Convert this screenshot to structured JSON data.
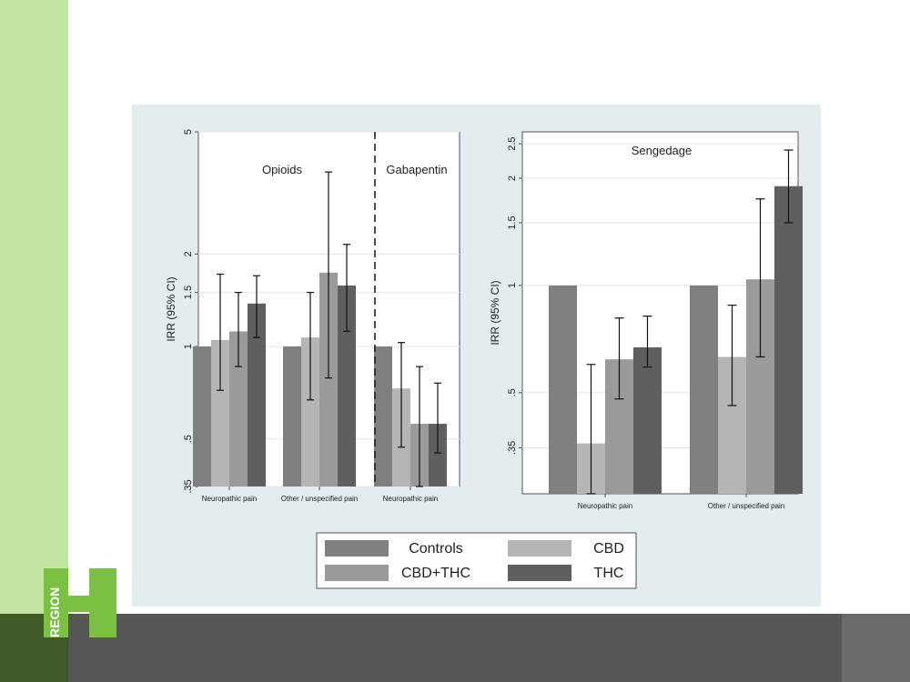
{
  "logo": {
    "text": "REGION",
    "accent": "#7ac143"
  },
  "colors": {
    "sidebar": "#c3e3a4",
    "footer": "#565656",
    "panel": "#e3ecee"
  },
  "legend": {
    "items": [
      {
        "label": "Controls",
        "color": "#7f7f7f"
      },
      {
        "label": "CBD",
        "color": "#b5b5b5"
      },
      {
        "label": "CBD+THC",
        "color": "#9a9a9a"
      },
      {
        "label": "THC",
        "color": "#5f5f5f"
      }
    ]
  },
  "chart_data": [
    {
      "type": "bar",
      "scale": "log",
      "ylabel": "IRR (95% CI)",
      "yticks": [
        ".35",
        ".5",
        "1",
        "1.5",
        "2",
        "5"
      ],
      "ylim": [
        0.35,
        5
      ],
      "panels": [
        {
          "label": "Opioids",
          "categories": [
            "Neuropathic pain",
            "Other / unspecified pain"
          ]
        },
        {
          "label": "Gabapentin",
          "categories": [
            "Neuropathic pain"
          ]
        }
      ],
      "categories": [
        "Neuropathic pain",
        "Other / unspecified pain",
        "Neuropathic pain"
      ],
      "series": [
        {
          "name": "Controls",
          "color": "#7f7f7f",
          "values": [
            1.0,
            1.0,
            1.0
          ],
          "ci_low": [
            null,
            null,
            null
          ],
          "ci_high": [
            null,
            null,
            null
          ]
        },
        {
          "name": "CBD",
          "color": "#b5b5b5",
          "values": [
            1.05,
            1.07,
            0.73
          ],
          "ci_low": [
            0.72,
            0.67,
            0.47
          ],
          "ci_high": [
            1.72,
            1.5,
            1.03
          ]
        },
        {
          "name": "CBD+THC",
          "color": "#9a9a9a",
          "values": [
            1.12,
            1.74,
            0.56
          ],
          "ci_low": [
            0.86,
            0.79,
            0.35
          ],
          "ci_high": [
            1.5,
            3.7,
            0.86
          ]
        },
        {
          "name": "THC",
          "color": "#5f5f5f",
          "values": [
            1.38,
            1.58,
            0.56
          ],
          "ci_low": [
            1.07,
            1.12,
            0.45
          ],
          "ci_high": [
            1.7,
            2.15,
            0.76
          ]
        }
      ],
      "grid": true
    },
    {
      "type": "bar",
      "scale": "log",
      "title": "Sengedage",
      "ylabel": "IRR (95% CI)",
      "yticks": [
        ".35",
        ".5",
        "1",
        "1.5",
        "2",
        "2.5"
      ],
      "ylim": [
        0.26,
        2.7
      ],
      "categories": [
        "Neuropathic pain",
        "Other / unspecified pain"
      ],
      "series": [
        {
          "name": "Controls",
          "color": "#7f7f7f",
          "values": [
            1.0,
            1.0
          ],
          "ci_low": [
            null,
            null
          ],
          "ci_high": [
            null,
            null
          ]
        },
        {
          "name": "CBD",
          "color": "#b5b5b5",
          "values": [
            0.36,
            0.63
          ],
          "ci_low": [
            0.26,
            0.46
          ],
          "ci_high": [
            0.6,
            0.88
          ]
        },
        {
          "name": "CBD+THC",
          "color": "#9a9a9a",
          "values": [
            0.62,
            1.04
          ],
          "ci_low": [
            0.48,
            0.63
          ],
          "ci_high": [
            0.81,
            1.75
          ]
        },
        {
          "name": "THC",
          "color": "#5f5f5f",
          "values": [
            0.67,
            1.9
          ],
          "ci_low": [
            0.59,
            1.5
          ],
          "ci_high": [
            0.82,
            2.4
          ]
        }
      ],
      "grid": true
    }
  ]
}
